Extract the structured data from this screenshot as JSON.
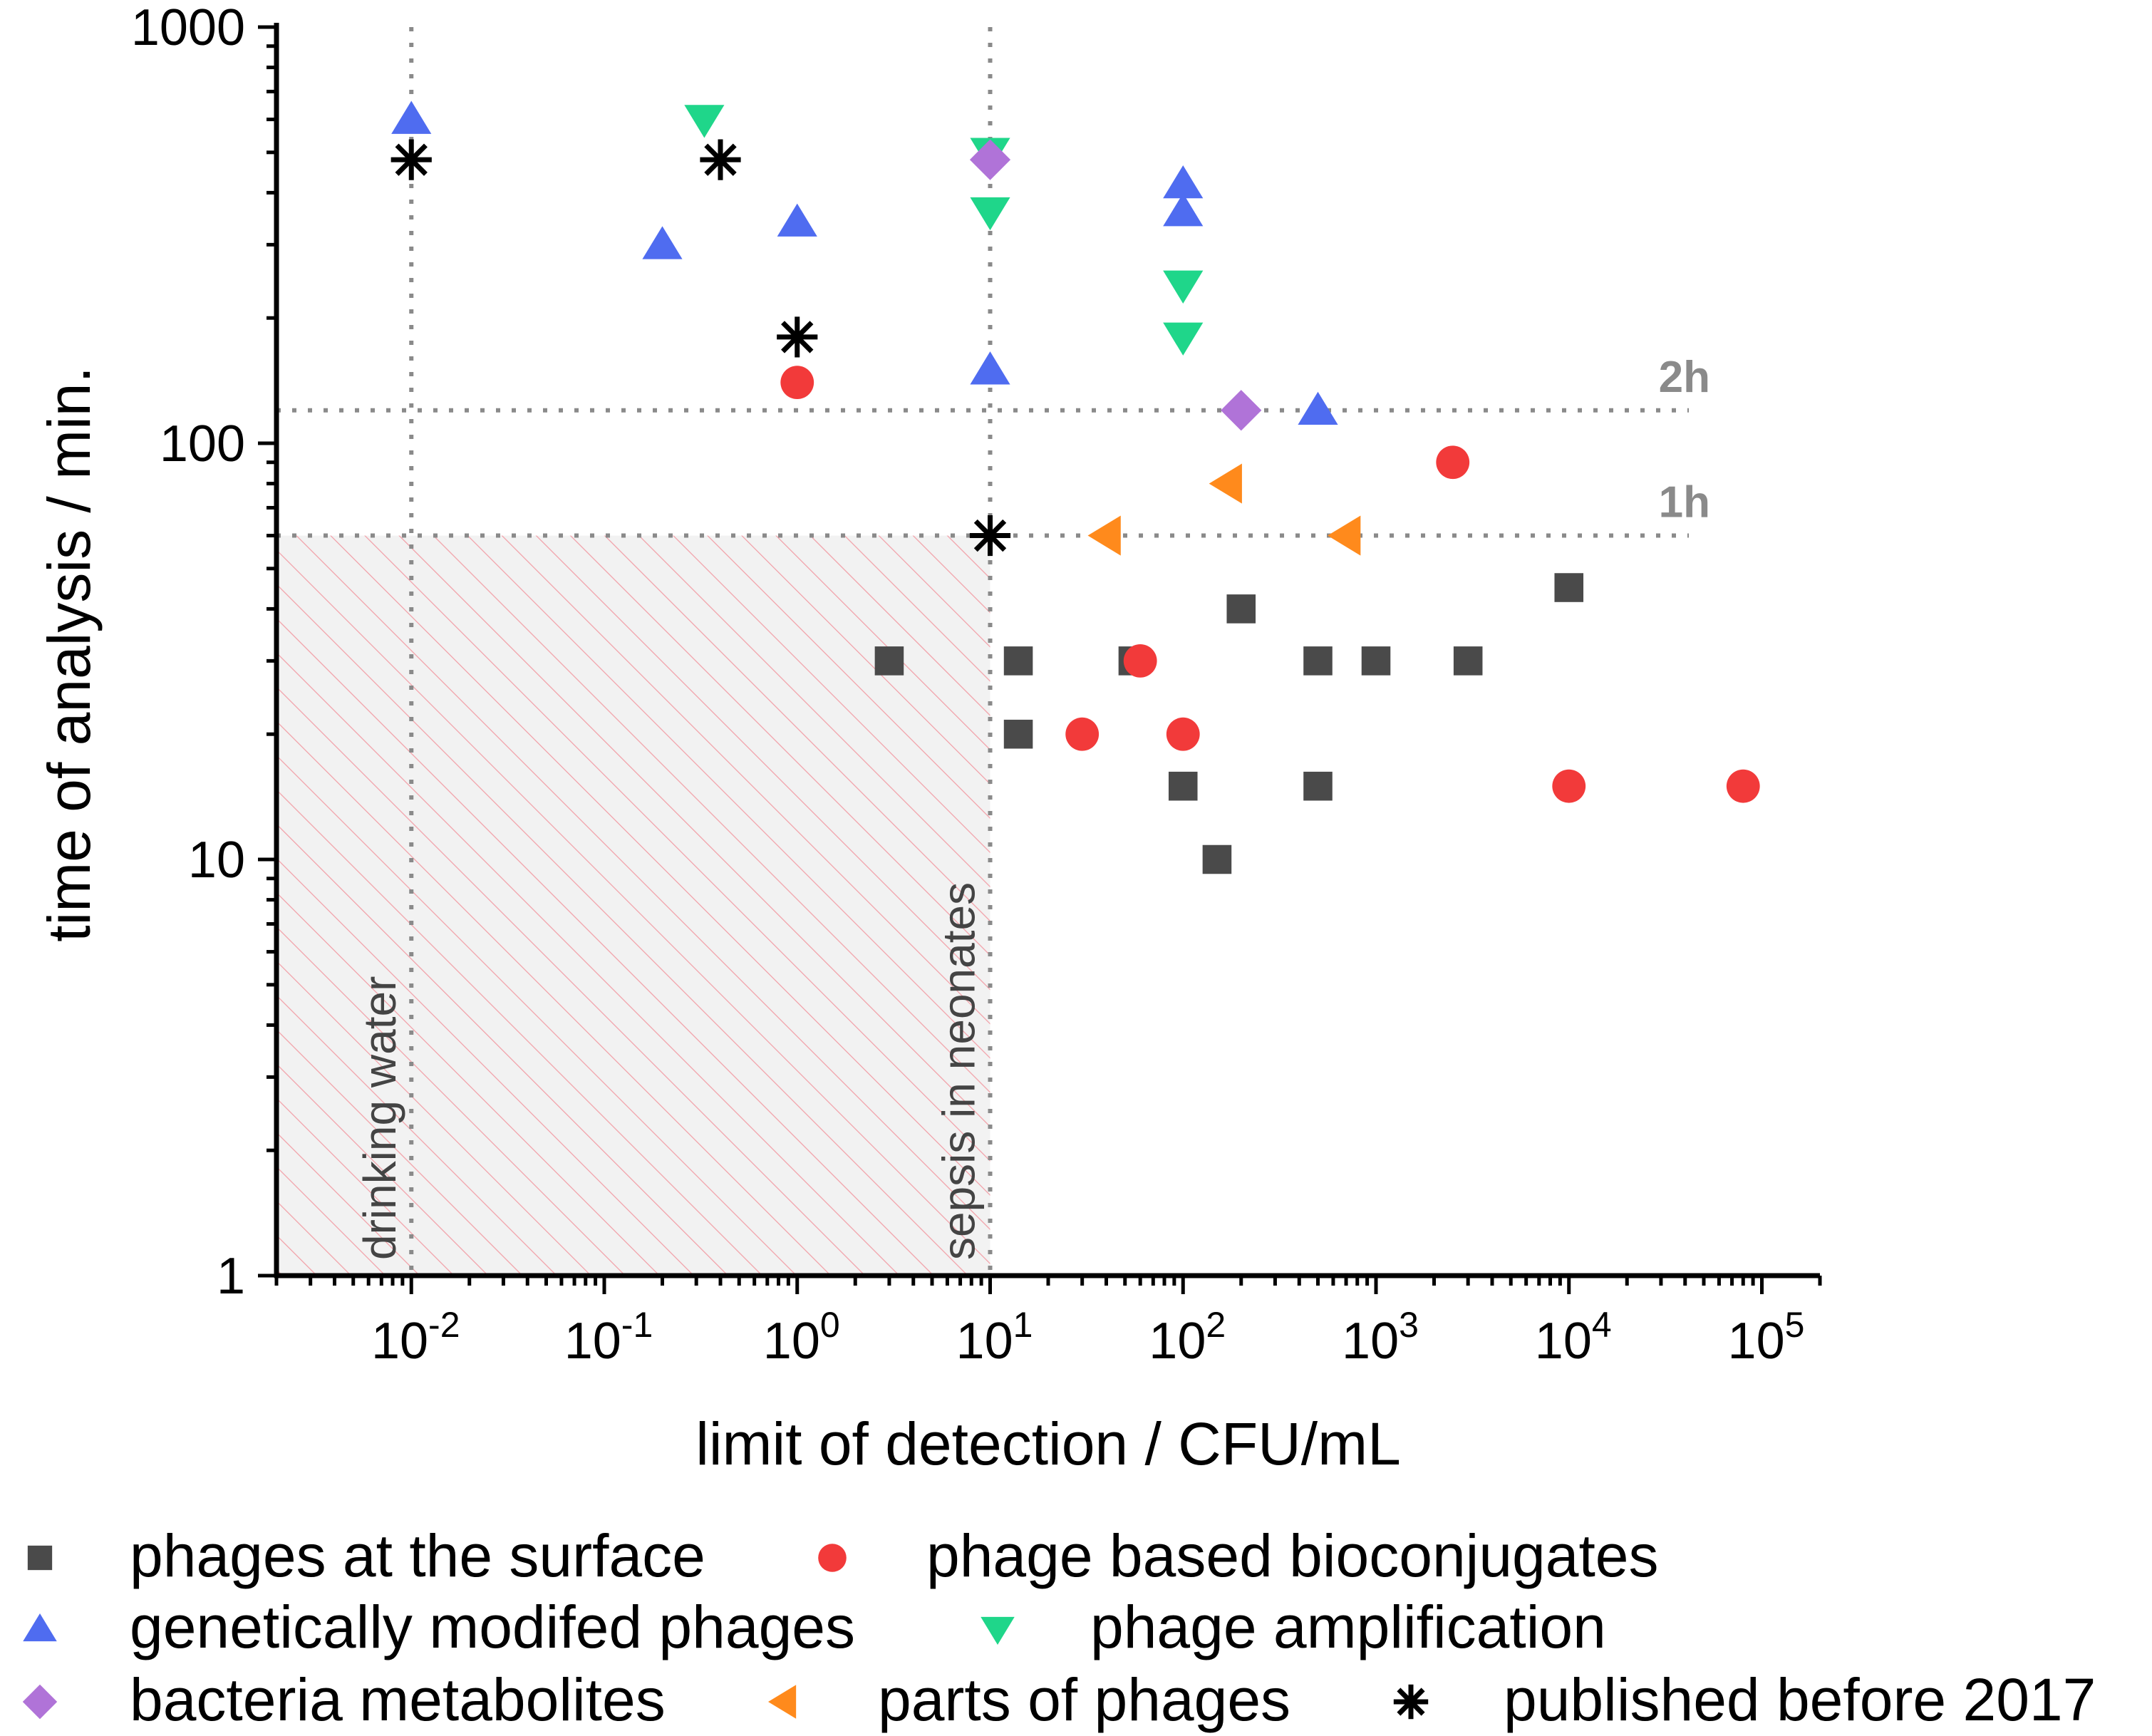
{
  "chart_data": {
    "type": "scatter",
    "xlabel": "limit of detection / CFU/mL",
    "ylabel": "time of analysis / min.",
    "xscale": "log",
    "yscale": "log",
    "xlim": [
      0.002,
      200000
    ],
    "ylim": [
      1,
      1000
    ],
    "x_ticks": [
      {
        "value": 0.01,
        "base": "10",
        "exp": "-2"
      },
      {
        "value": 0.1,
        "base": "10",
        "exp": "-1"
      },
      {
        "value": 1,
        "base": "10",
        "exp": "0"
      },
      {
        "value": 10,
        "base": "10",
        "exp": "1"
      },
      {
        "value": 100,
        "base": "10",
        "exp": "2"
      },
      {
        "value": 1000,
        "base": "10",
        "exp": "3"
      },
      {
        "value": 10000,
        "base": "10",
        "exp": "4"
      },
      {
        "value": 100000,
        "base": "10",
        "exp": "5"
      }
    ],
    "y_ticks": [
      {
        "value": 1,
        "label": "1"
      },
      {
        "value": 10,
        "label": "10"
      },
      {
        "value": 100,
        "label": "100"
      },
      {
        "value": 1000,
        "label": "1000"
      }
    ],
    "reference_lines": {
      "vertical": [
        {
          "x": 0.01,
          "label": "drinking water"
        },
        {
          "x": 10,
          "label": "sepsis in neonates"
        }
      ],
      "horizontal": [
        {
          "y": 120,
          "label": "2h"
        },
        {
          "y": 60,
          "label": "1h"
        }
      ]
    },
    "shaded_region": {
      "x": [
        0.002,
        10
      ],
      "y": [
        1,
        60
      ],
      "style": "hatched"
    },
    "series": [
      {
        "name": "phages at the surface",
        "marker": "square",
        "color": "#4a4a4a",
        "points": [
          [
            3,
            30
          ],
          [
            14,
            30
          ],
          [
            14,
            20
          ],
          [
            55,
            30
          ],
          [
            100,
            15
          ],
          [
            150,
            10
          ],
          [
            200,
            40
          ],
          [
            500,
            30
          ],
          [
            500,
            15
          ],
          [
            1000,
            30
          ],
          [
            3000,
            30
          ],
          [
            10000,
            45
          ]
        ]
      },
      {
        "name": "phage based bioconjugates",
        "marker": "circle",
        "color": "#f23a3a",
        "points": [
          [
            1,
            140
          ],
          [
            30,
            20
          ],
          [
            60,
            30
          ],
          [
            100,
            20
          ],
          [
            2500,
            90
          ],
          [
            10000,
            15
          ],
          [
            80000,
            15
          ]
        ]
      },
      {
        "name": "genetically modifed phages",
        "marker": "triangle-up",
        "color": "#4f6cf0",
        "points": [
          [
            0.01,
            600
          ],
          [
            0.2,
            300
          ],
          [
            1,
            340
          ],
          [
            10,
            150
          ],
          [
            100,
            420
          ],
          [
            100,
            360
          ],
          [
            500,
            120
          ]
        ]
      },
      {
        "name": "phage amplification",
        "marker": "triangle-down",
        "color": "#1fd68a",
        "points": [
          [
            0.33,
            600
          ],
          [
            10,
            500
          ],
          [
            10,
            360
          ],
          [
            100,
            240
          ],
          [
            100,
            180
          ]
        ]
      },
      {
        "name": "bacteria metabolites",
        "marker": "diamond",
        "color": "#b073d8",
        "points": [
          [
            10,
            480
          ],
          [
            200,
            120
          ]
        ]
      },
      {
        "name": "parts of phages",
        "marker": "triangle-left",
        "color": "#ff8a1c",
        "points": [
          [
            170,
            80
          ],
          [
            40,
            60
          ],
          [
            700,
            60
          ]
        ]
      },
      {
        "name": "published before 2017",
        "marker": "asterisk",
        "color": "#000000",
        "points": [
          [
            0.01,
            480
          ],
          [
            0.4,
            480
          ],
          [
            1,
            180
          ],
          [
            10,
            60
          ]
        ]
      }
    ]
  }
}
